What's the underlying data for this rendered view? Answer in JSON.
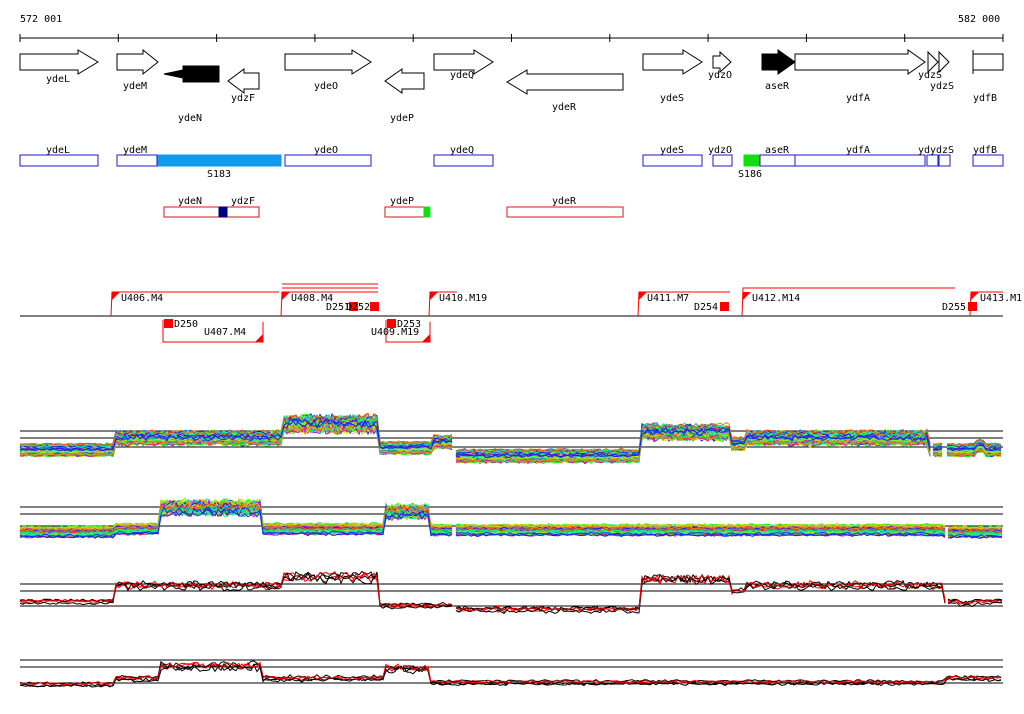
{
  "coordinate_range": {
    "start": "572 001",
    "end": "582 000"
  },
  "gene_track": [
    {
      "name": "ydeL",
      "strand": "+",
      "fill": "white"
    },
    {
      "name": "ydeM",
      "strand": "+",
      "fill": "white"
    },
    {
      "name": "ydeN",
      "strand": "-",
      "fill": "black"
    },
    {
      "name": "ydzF",
      "strand": "-",
      "fill": "white"
    },
    {
      "name": "ydeO",
      "strand": "+",
      "fill": "white"
    },
    {
      "name": "ydeP",
      "strand": "-",
      "fill": "white"
    },
    {
      "name": "ydeQ",
      "strand": "+",
      "fill": "white"
    },
    {
      "name": "ydeR",
      "strand": "-",
      "fill": "white"
    },
    {
      "name": "ydeS",
      "strand": "+",
      "fill": "white"
    },
    {
      "name": "ydzO",
      "strand": "+",
      "fill": "white"
    },
    {
      "name": "aseR",
      "strand": "+",
      "fill": "black"
    },
    {
      "name": "ydfA",
      "strand": "+",
      "fill": "white"
    },
    {
      "name": "ydzS",
      "strand": "+",
      "fill": "white",
      "label": "ydzS"
    },
    {
      "name": "ydzS2",
      "strand": "+",
      "fill": "white",
      "label": "ydzS"
    },
    {
      "name": "ydfB",
      "strand": "+",
      "fill": "white"
    }
  ],
  "plus_strand_boxes": [
    {
      "label": "ydeL"
    },
    {
      "label": "ydeM"
    },
    {
      "label": "S183"
    },
    {
      "label": "ydeO"
    },
    {
      "label": "ydeQ"
    },
    {
      "label": "ydeS"
    },
    {
      "label": "ydzO"
    },
    {
      "label": "S186"
    },
    {
      "label": "aseR"
    },
    {
      "label": "ydfA"
    },
    {
      "label": "ydzS"
    },
    {
      "label": "ydfB"
    }
  ],
  "plus_strand_short_labels": [
    "yd",
    "ydzS"
  ],
  "minus_strand_boxes": [
    {
      "label": "ydeN"
    },
    {
      "label": "ydzF"
    },
    {
      "label": "ydeP"
    },
    {
      "label": "ydeR"
    }
  ],
  "transcription_units_upper": [
    {
      "label": "U406.M4"
    },
    {
      "label": "U408.M4"
    },
    {
      "label": "U410.M19"
    },
    {
      "label": "U411.M7"
    },
    {
      "label": "U412.M14"
    },
    {
      "label": "U413.M1"
    }
  ],
  "transcription_units_lower": [
    {
      "label": "U407.M4"
    },
    {
      "label": "U409.M19"
    }
  ],
  "downshift_labels": [
    "D250",
    "D251",
    "D252",
    "D253",
    "D254",
    "D255"
  ],
  "expression_panels": [
    {
      "name": "plus-strand-all-conditions",
      "style": "rainbow"
    },
    {
      "name": "minus-strand-all-conditions",
      "style": "rainbow"
    },
    {
      "name": "plus-strand-selected",
      "style": "red-black"
    },
    {
      "name": "minus-strand-selected",
      "style": "red-black"
    }
  ],
  "colors": {
    "gene_outline": "#000000",
    "plus_box": "#1a1acc",
    "minus_box": "#cc1a1a",
    "highlight_blue": "#1199ee",
    "highlight_green": "#11dd11",
    "tu_line": "#ff0000",
    "marker_red": "#ff0000",
    "dark_blue": "#000080"
  }
}
